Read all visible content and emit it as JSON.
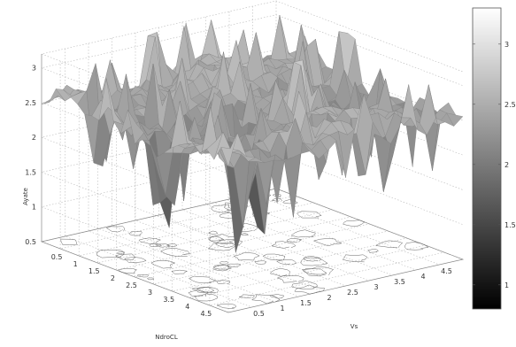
{
  "chart_data": {
    "type": "surface",
    "title": "",
    "xlabel": "NdroCL",
    "ylabel": "Vs",
    "zlabel": "Ayate",
    "xlim": [
      0,
      5
    ],
    "ylim": [
      0,
      5
    ],
    "zlim": [
      0.5,
      3.2
    ],
    "x_ticks": [
      "0.5",
      "1",
      "1.5",
      "2",
      "2.5",
      "3",
      "3.5",
      "4",
      "4.5"
    ],
    "y_ticks": [
      "0.5",
      "1",
      "1.5",
      "2",
      "2.5",
      "3",
      "3.5",
      "4",
      "4.5"
    ],
    "z_ticks": [
      "0.5",
      "1",
      "1.5",
      "2",
      "2.5",
      "3"
    ],
    "colorbar_ticks": [
      "1",
      "1.5",
      "2",
      "2.5",
      "3"
    ],
    "colormap": "gray",
    "colorbar_range": [
      0.8,
      3.3
    ],
    "grid": true,
    "contour_projection": true,
    "base_level": 2.5,
    "peaks": [
      {
        "x": 3.2,
        "y": 4.6,
        "z": 3.15
      },
      {
        "x": 2.2,
        "y": 2.0,
        "z": 3.0
      },
      {
        "x": 2.8,
        "y": 3.3,
        "z": 3.0
      },
      {
        "x": 4.3,
        "y": 1.6,
        "z": 2.95
      }
    ],
    "dips": [
      {
        "x": 2.6,
        "y": 0.5,
        "z": 0.55
      },
      {
        "x": 4.3,
        "y": 0.8,
        "z": 0.6
      },
      {
        "x": 1.2,
        "y": 0.3,
        "z": 1.2
      },
      {
        "x": 0.7,
        "y": 0.7,
        "z": 1.2
      },
      {
        "x": 3.9,
        "y": 1.5,
        "z": 1.0
      },
      {
        "x": 3.0,
        "y": 0.3,
        "z": 1.3
      },
      {
        "x": 4.8,
        "y": 3.5,
        "z": 1.5
      },
      {
        "x": 1.8,
        "y": 1.0,
        "z": 1.6
      }
    ]
  }
}
